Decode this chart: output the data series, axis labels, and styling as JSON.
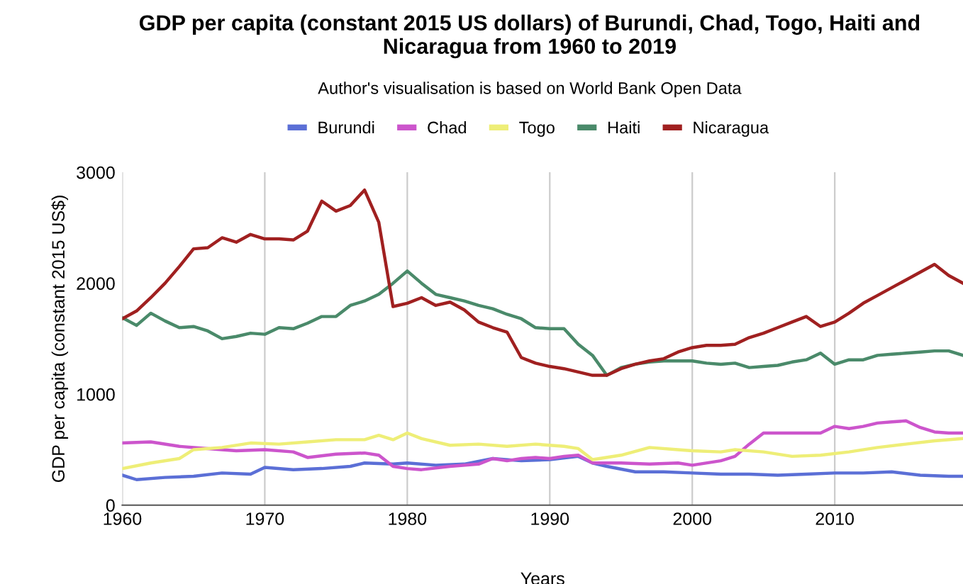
{
  "chart_data": {
    "type": "line",
    "title": "GDP per capita (constant 2015 US dollars) of Burundi, Chad, Togo, Haiti and Nicaragua from 1960 to 2019",
    "subtitle": "Author's visualisation is based on World Bank Open Data",
    "xlabel": "Years",
    "ylabel": "GDP per capita (constant 2015 US$)",
    "xlim": [
      1960,
      2019
    ],
    "xticks": [
      1960,
      1970,
      1980,
      1990,
      2000,
      2010
    ],
    "ylim": [
      0,
      3000
    ],
    "yticks": [
      0,
      1000,
      2000,
      3000
    ],
    "grid": "x",
    "legend": "top",
    "series": [
      {
        "name": "Burundi",
        "color": "#5b6fd6",
        "x": [
          1960,
          1961,
          1963,
          1965,
          1967,
          1969,
          1970,
          1972,
          1974,
          1976,
          1977,
          1979,
          1980,
          1982,
          1984,
          1986,
          1988,
          1990,
          1992,
          1993,
          1994,
          1996,
          1998,
          2000,
          2002,
          2004,
          2006,
          2008,
          2010,
          2012,
          2014,
          2016,
          2018,
          2019
        ],
        "values": [
          270,
          230,
          250,
          260,
          290,
          280,
          340,
          320,
          330,
          350,
          380,
          370,
          380,
          360,
          370,
          420,
          400,
          410,
          440,
          380,
          350,
          300,
          300,
          290,
          280,
          280,
          270,
          280,
          290,
          290,
          300,
          270,
          260,
          260
        ]
      },
      {
        "name": "Chad",
        "color": "#cc55cc",
        "x": [
          1960,
          1962,
          1964,
          1966,
          1968,
          1970,
          1972,
          1973,
          1975,
          1977,
          1978,
          1979,
          1980,
          1981,
          1983,
          1985,
          1986,
          1987,
          1988,
          1989,
          1990,
          1991,
          1992,
          1993,
          1995,
          1997,
          1999,
          2000,
          2002,
          2003,
          2004,
          2005,
          2006,
          2008,
          2009,
          2010,
          2011,
          2012,
          2013,
          2014,
          2015,
          2016,
          2017,
          2018,
          2019
        ],
        "values": [
          560,
          570,
          530,
          510,
          490,
          500,
          480,
          430,
          460,
          470,
          450,
          350,
          330,
          320,
          350,
          370,
          420,
          400,
          420,
          430,
          420,
          440,
          450,
          380,
          380,
          370,
          380,
          360,
          400,
          440,
          550,
          650,
          650,
          650,
          650,
          710,
          690,
          710,
          740,
          750,
          760,
          700,
          660,
          650,
          650
        ]
      },
      {
        "name": "Togo",
        "color": "#eeee77",
        "x": [
          1960,
          1962,
          1964,
          1965,
          1967,
          1969,
          1971,
          1973,
          1975,
          1977,
          1978,
          1979,
          1980,
          1981,
          1983,
          1985,
          1987,
          1989,
          1991,
          1992,
          1993,
          1995,
          1997,
          1999,
          2000,
          2002,
          2003,
          2005,
          2007,
          2009,
          2011,
          2013,
          2015,
          2017,
          2019
        ],
        "values": [
          330,
          380,
          420,
          500,
          520,
          560,
          550,
          570,
          590,
          590,
          630,
          590,
          650,
          600,
          540,
          550,
          530,
          550,
          530,
          510,
          410,
          450,
          520,
          500,
          490,
          480,
          500,
          480,
          440,
          450,
          480,
          520,
          550,
          580,
          600
        ]
      },
      {
        "name": "Haiti",
        "color": "#4a8a6a",
        "x": [
          1960,
          1961,
          1962,
          1963,
          1964,
          1965,
          1966,
          1967,
          1968,
          1969,
          1970,
          1971,
          1972,
          1973,
          1974,
          1975,
          1976,
          1977,
          1978,
          1979,
          1980,
          1981,
          1982,
          1983,
          1984,
          1985,
          1986,
          1987,
          1988,
          1989,
          1990,
          1991,
          1992,
          1993,
          1994,
          1995,
          1996,
          1997,
          1998,
          1999,
          2000,
          2001,
          2002,
          2003,
          2004,
          2005,
          2006,
          2007,
          2008,
          2009,
          2010,
          2011,
          2012,
          2013,
          2014,
          2015,
          2016,
          2017,
          2018,
          2019
        ],
        "values": [
          1690,
          1620,
          1730,
          1660,
          1600,
          1610,
          1570,
          1500,
          1520,
          1550,
          1540,
          1600,
          1590,
          1640,
          1700,
          1700,
          1800,
          1840,
          1900,
          2000,
          2110,
          2000,
          1900,
          1870,
          1840,
          1800,
          1770,
          1720,
          1680,
          1600,
          1590,
          1590,
          1450,
          1350,
          1170,
          1240,
          1270,
          1290,
          1300,
          1300,
          1300,
          1280,
          1270,
          1280,
          1240,
          1250,
          1260,
          1290,
          1310,
          1370,
          1270,
          1310,
          1310,
          1350,
          1360,
          1370,
          1380,
          1390,
          1390,
          1350
        ]
      },
      {
        "name": "Nicaragua",
        "color": "#a02020",
        "x": [
          1960,
          1961,
          1962,
          1963,
          1964,
          1965,
          1966,
          1967,
          1968,
          1969,
          1970,
          1971,
          1972,
          1973,
          1974,
          1975,
          1976,
          1977,
          1978,
          1979,
          1980,
          1981,
          1982,
          1983,
          1984,
          1985,
          1986,
          1987,
          1988,
          1989,
          1990,
          1991,
          1992,
          1993,
          1994,
          1995,
          1996,
          1997,
          1998,
          1999,
          2000,
          2001,
          2002,
          2003,
          2004,
          2005,
          2006,
          2007,
          2008,
          2009,
          2010,
          2011,
          2012,
          2013,
          2014,
          2015,
          2016,
          2017,
          2018,
          2019
        ],
        "values": [
          1680,
          1750,
          1870,
          2000,
          2150,
          2310,
          2320,
          2410,
          2370,
          2440,
          2400,
          2400,
          2390,
          2470,
          2740,
          2650,
          2700,
          2840,
          2550,
          1790,
          1820,
          1870,
          1800,
          1830,
          1760,
          1650,
          1600,
          1560,
          1330,
          1280,
          1250,
          1230,
          1200,
          1170,
          1170,
          1230,
          1270,
          1300,
          1320,
          1380,
          1420,
          1440,
          1440,
          1450,
          1510,
          1550,
          1600,
          1650,
          1700,
          1610,
          1650,
          1730,
          1820,
          1890,
          1960,
          2030,
          2100,
          2170,
          2070,
          2000
        ]
      }
    ]
  }
}
